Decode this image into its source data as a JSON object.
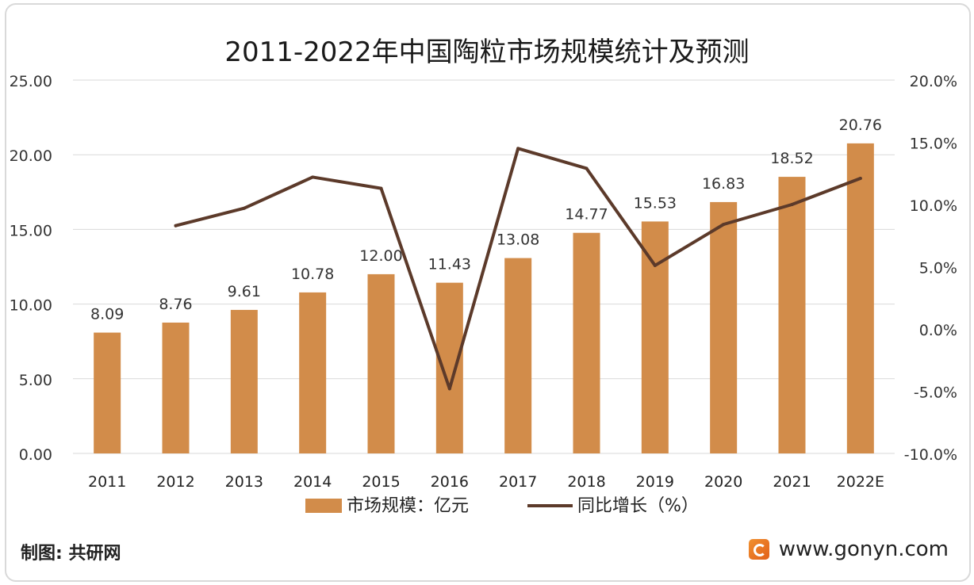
{
  "title": "2011-2022年中国陶粒市场规模统计及预测",
  "footer": {
    "source": "制图: 共研网",
    "website": "www.gonyn.com",
    "logo_icon": "gonyn-logo-icon"
  },
  "chart_data": {
    "type": "bar",
    "categories": [
      "2011",
      "2012",
      "2013",
      "2014",
      "2015",
      "2016",
      "2017",
      "2018",
      "2019",
      "2020",
      "2021",
      "2022E"
    ],
    "y_left": {
      "min": 0,
      "max": 25,
      "ticks": [
        0,
        5,
        10,
        15,
        20,
        25
      ],
      "tick_labels": [
        "0.00",
        "5.00",
        "10.00",
        "15.00",
        "20.00",
        "25.00"
      ]
    },
    "y_right": {
      "min": -10,
      "max": 20,
      "ticks": [
        -10,
        -5,
        0,
        5,
        10,
        15,
        20
      ],
      "tick_labels": [
        "-10.0%",
        "-5.0%",
        "0.0%",
        "5.0%",
        "10.0%",
        "15.0%",
        "20.0%"
      ]
    },
    "grid": true,
    "legend_position": "bottom",
    "series": [
      {
        "name": "市场规模：亿元",
        "type": "bar",
        "axis": "left",
        "color": "#d28c4a",
        "values": [
          8.09,
          8.76,
          9.61,
          10.78,
          12.0,
          11.43,
          13.08,
          14.77,
          15.53,
          16.83,
          18.52,
          20.76
        ],
        "labels": [
          "8.09",
          "8.76",
          "9.61",
          "10.78",
          "12.00",
          "11.43",
          "13.08",
          "14.77",
          "15.53",
          "16.83",
          "18.52",
          "20.76"
        ]
      },
      {
        "name": "同比增长（%）",
        "type": "line",
        "axis": "right",
        "color": "#5c3a2a",
        "values": [
          null,
          8.3,
          9.7,
          12.2,
          11.3,
          -4.8,
          14.5,
          12.9,
          5.1,
          8.4,
          10.0,
          12.1
        ]
      }
    ]
  }
}
